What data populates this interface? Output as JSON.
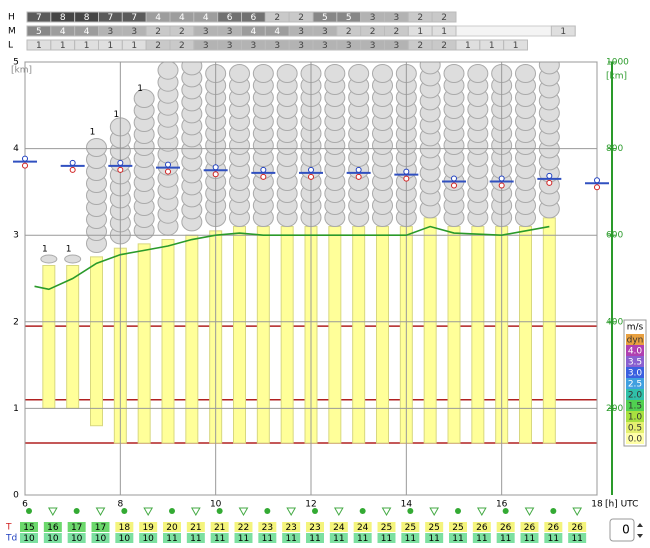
{
  "chart_data": {
    "type": "meteogram",
    "cover_rows": [
      {
        "name": "H",
        "values": [
          7,
          8,
          8,
          7,
          7,
          4,
          4,
          4,
          6,
          6,
          2,
          2,
          5,
          5,
          3,
          3,
          2,
          2
        ]
      },
      {
        "name": "M",
        "values": [
          5,
          4,
          4,
          3,
          3,
          2,
          2,
          3,
          3,
          4,
          4,
          3,
          3,
          2,
          2,
          2,
          1,
          1,
          null,
          null,
          null,
          null,
          1
        ]
      },
      {
        "name": "L",
        "values": [
          1,
          1,
          1,
          1,
          1,
          2,
          2,
          3,
          3,
          3,
          3,
          3,
          3,
          3,
          3,
          3,
          2,
          2,
          1,
          1,
          1
        ]
      }
    ],
    "y_label": "[km]",
    "ylim": [
      0,
      5
    ],
    "yticks": [
      0,
      1,
      2,
      3,
      4,
      5
    ],
    "y2_label": "[km]",
    "y2lim": [
      0,
      1000
    ],
    "y2ticks": [
      200,
      400,
      600,
      800,
      1000
    ],
    "x_label": "[h] UTC",
    "xlim": [
      6,
      18
    ],
    "xticks": [
      6,
      8,
      10,
      12,
      14,
      16,
      18
    ],
    "thermals": {
      "x": [
        6.5,
        7,
        7.5,
        8,
        8.5,
        9,
        9.5,
        10,
        10.5,
        11,
        11.5,
        12,
        12.5,
        13,
        13.5,
        14,
        14.5,
        15,
        15.5,
        16,
        16.5,
        17
      ],
      "bottom": [
        1.0,
        1.0,
        0.8,
        0.6,
        0.6,
        0.6,
        0.6,
        0.6,
        0.6,
        0.6,
        0.6,
        0.6,
        0.6,
        0.6,
        0.6,
        0.6,
        0.6,
        0.6,
        0.6,
        0.6,
        0.6,
        0.6
      ],
      "top": [
        2.65,
        2.65,
        2.75,
        2.85,
        2.9,
        2.95,
        3.0,
        3.05,
        3.1,
        3.1,
        3.1,
        3.1,
        3.1,
        3.1,
        3.1,
        3.1,
        3.2,
        3.1,
        3.1,
        3.1,
        3.1,
        3.2
      ]
    },
    "clouds": {
      "x": [
        6.5,
        7,
        7.5,
        8,
        8.5,
        9,
        9.5,
        10,
        10.5,
        11,
        11.5,
        12,
        12.5,
        13,
        13.5,
        14,
        14.5,
        15,
        15.5,
        16,
        16.5,
        17
      ],
      "base": [
        2.7,
        2.7,
        2.8,
        2.9,
        2.95,
        3.0,
        3.05,
        3.1,
        3.1,
        3.1,
        3.1,
        3.1,
        3.1,
        3.1,
        3.1,
        3.1,
        3.2,
        3.1,
        3.1,
        3.1,
        3.1,
        3.2
      ],
      "top": [
        2.75,
        2.75,
        4.1,
        4.3,
        4.6,
        5,
        5,
        5,
        5,
        5,
        5,
        5,
        5,
        5,
        5,
        5,
        5,
        5,
        5,
        5,
        5,
        5
      ],
      "labels": [
        "1",
        "1",
        "1",
        "1",
        "1"
      ]
    },
    "inversions": [
      0.6,
      1.1,
      1.95
    ],
    "level_markers": {
      "x": [
        6,
        7,
        8,
        9,
        10,
        11,
        12,
        13,
        14,
        15,
        16,
        17,
        18
      ],
      "values": [
        3.85,
        3.8,
        3.8,
        3.78,
        3.75,
        3.72,
        3.72,
        3.72,
        3.7,
        3.62,
        3.62,
        3.65,
        3.6
      ]
    },
    "series": [
      {
        "name": "BL",
        "color": "#2a9a2a",
        "axis": "y2",
        "x": [
          6.2,
          6.5,
          7,
          7.5,
          8,
          8.5,
          9,
          9.5,
          10,
          10.5,
          11,
          12,
          13,
          14,
          14.5,
          15,
          16,
          17
        ],
        "values": [
          482,
          475,
          500,
          535,
          555,
          565,
          575,
          590,
          600,
          605,
          600,
          600,
          600,
          600,
          620,
          605,
          600,
          620
        ]
      }
    ],
    "legend": {
      "title": "m/s",
      "items": [
        {
          "label": "dyn",
          "color": "#e8a040"
        },
        {
          "label": "4.0",
          "color": "#b040b0"
        },
        {
          "label": "3.5",
          "color": "#8a60d0"
        },
        {
          "label": "3.0",
          "color": "#3a60e0"
        },
        {
          "label": "2.5",
          "color": "#40a0e0"
        },
        {
          "label": "2.0",
          "color": "#30c0a8"
        },
        {
          "label": "1.5",
          "color": "#50d050"
        },
        {
          "label": "1.0",
          "color": "#a8e040"
        },
        {
          "label": "0.5",
          "color": "#e4f070"
        },
        {
          "label": "0.0",
          "color": "#ffffa8"
        }
      ]
    },
    "temp_rows": [
      {
        "name": "T",
        "values": [
          15,
          16,
          17,
          17,
          18,
          19,
          20,
          21,
          21,
          22,
          23,
          23,
          23,
          24,
          24,
          25,
          25,
          25,
          25,
          26,
          26,
          26,
          26,
          26
        ]
      },
      {
        "name": "Td",
        "values": [
          10,
          10,
          10,
          10,
          10,
          10,
          11,
          11,
          11,
          11,
          11,
          11,
          11,
          11,
          11,
          11,
          11,
          11,
          11,
          11,
          11,
          11,
          11,
          11
        ]
      }
    ],
    "spinner_value": "0"
  }
}
